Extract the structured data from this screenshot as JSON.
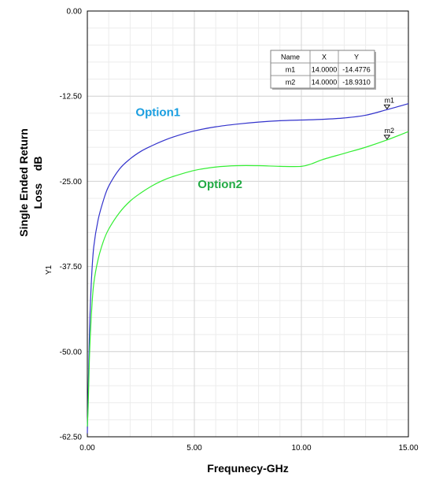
{
  "chart_data": {
    "type": "line",
    "title": "",
    "xlabel": "Frequnecy-GHz",
    "ylabel_lines": [
      "Single Ended Return",
      "Loss    dB"
    ],
    "yaxis_name": "Y1",
    "xlim": [
      0,
      15
    ],
    "ylim": [
      -62.5,
      0
    ],
    "xticks": [
      0,
      5,
      10,
      15
    ],
    "xtick_labels": [
      "0.00",
      "5.00",
      "10.00",
      "15.00"
    ],
    "yticks": [
      0,
      -12.5,
      -25,
      -37.5,
      -50,
      -62.5
    ],
    "ytick_labels": [
      "0.00",
      "-12.50",
      "-25.00",
      "-37.50",
      "-50.00",
      "-62.50"
    ],
    "grid": true,
    "series": [
      {
        "name": "Option1",
        "color": "#3333cc",
        "label_color": "#1a9ee0",
        "x": [
          0.0,
          0.04,
          0.08,
          0.12,
          0.2,
          0.3,
          0.5,
          0.75,
          1.0,
          1.5,
          2.0,
          2.5,
          3.0,
          3.5,
          4.0,
          5.0,
          6.0,
          7.0,
          8.0,
          9.0,
          10.0,
          11.0,
          12.0,
          13.0,
          14.0,
          15.0
        ],
        "y": [
          -62.0,
          -56.0,
          -50.0,
          -45.0,
          -39.0,
          -34.6,
          -30.7,
          -27.8,
          -25.7,
          -23.2,
          -21.7,
          -20.6,
          -19.8,
          -19.1,
          -18.5,
          -17.6,
          -17.0,
          -16.6,
          -16.3,
          -16.1,
          -16.0,
          -15.9,
          -15.7,
          -15.3,
          -14.4776,
          -13.6
        ]
      },
      {
        "name": "Option2",
        "color": "#33ee33",
        "label_color": "#22aa44",
        "x": [
          0.0,
          0.04,
          0.08,
          0.12,
          0.2,
          0.3,
          0.5,
          0.75,
          1.0,
          1.5,
          2.0,
          2.5,
          3.0,
          3.5,
          4.0,
          5.0,
          6.0,
          7.0,
          8.0,
          9.0,
          10.0,
          10.5,
          11.0,
          12.0,
          13.0,
          14.0,
          15.0
        ],
        "y": [
          -61.0,
          -58.0,
          -53.0,
          -49.0,
          -44.0,
          -40.0,
          -36.5,
          -33.8,
          -32.0,
          -29.6,
          -27.9,
          -26.7,
          -25.7,
          -24.9,
          -24.3,
          -23.4,
          -22.9,
          -22.7,
          -22.7,
          -22.8,
          -22.8,
          -22.4,
          -21.8,
          -20.9,
          -20.0,
          -18.931,
          -17.7
        ]
      }
    ],
    "series_labels": [
      {
        "text": "Option1",
        "x": 3.3,
        "y": -15.4
      },
      {
        "text": "Option2",
        "x": 6.2,
        "y": -26.0
      }
    ],
    "markers": [
      {
        "name": "m1",
        "x": 14.0,
        "y": -14.4776,
        "series": "Option1"
      },
      {
        "name": "m2",
        "x": 14.0,
        "y": -18.931,
        "series": "Option2"
      }
    ],
    "marker_table": {
      "headers": [
        "Name",
        "X",
        "Y"
      ],
      "rows": [
        [
          "m1",
          "14.0000",
          "-14.4776"
        ],
        [
          "m2",
          "14.0000",
          "-18.9310"
        ]
      ]
    }
  }
}
